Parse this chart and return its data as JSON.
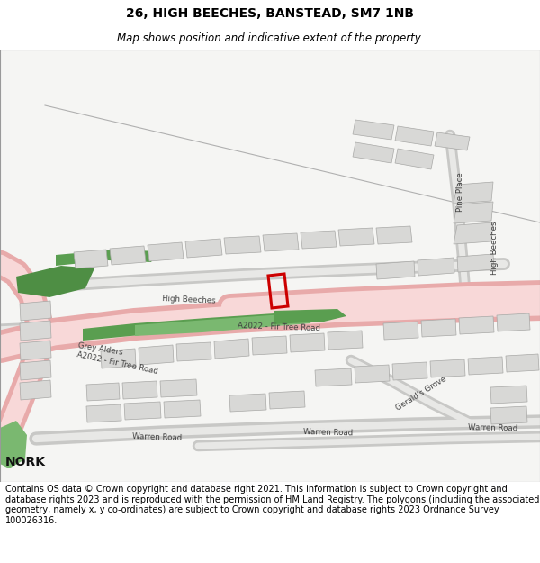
{
  "title": "26, HIGH BEECHES, BANSTEAD, SM7 1NB",
  "subtitle": "Map shows position and indicative extent of the property.",
  "footer": "Contains OS data © Crown copyright and database right 2021. This information is subject to Crown copyright and database rights 2023 and is reproduced with the permission of HM Land Registry. The polygons (including the associated geometry, namely x, y co-ordinates) are subject to Crown copyright and database rights 2023 Ordnance Survey 100026316.",
  "map_bg": "#f5f5f3",
  "road_pink_outer": "#e8aaaa",
  "road_pink_inner": "#f8d8d8",
  "road_grey_outer": "#c8c8c6",
  "road_grey_inner": "#e8e8e6",
  "green1": "#5a9e50",
  "green2": "#4e8e44",
  "green3": "#7ab870",
  "building_fill": "#d8d8d6",
  "building_edge": "#a8a8a6",
  "highlight_red": "#cc0000",
  "text_color": "#404040",
  "title_fontsize": 10,
  "subtitle_fontsize": 8.5,
  "footer_fontsize": 7.0
}
